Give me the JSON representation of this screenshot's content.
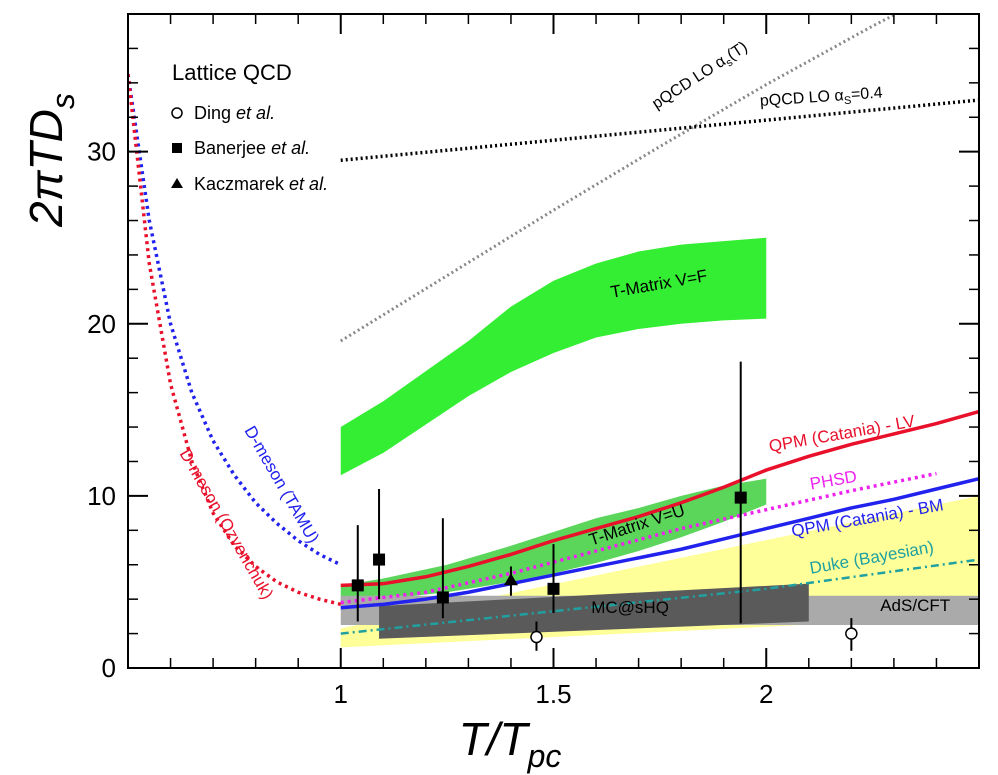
{
  "chart_data": {
    "type": "line",
    "xlabel": "T/T",
    "xlabel_sub": "pc",
    "ylabel": "2πTD",
    "ylabel_sub": "s",
    "xlim": [
      0.5,
      2.5
    ],
    "ylim": [
      0,
      38
    ],
    "x_ticks": [
      {
        "v": 1,
        "label": "1"
      },
      {
        "v": 1.5,
        "label": "1.5"
      },
      {
        "v": 2,
        "label": "2"
      }
    ],
    "y_ticks": [
      {
        "v": 0,
        "label": "0"
      },
      {
        "v": 10,
        "label": "10"
      },
      {
        "v": 20,
        "label": "20"
      },
      {
        "v": 30,
        "label": "30"
      }
    ],
    "legend": {
      "title": "Lattice QCD",
      "entries": [
        {
          "marker": "open-circle",
          "name": "Ding",
          "em": "et al."
        },
        {
          "marker": "square",
          "name": "Banerjee",
          "em": "et al."
        },
        {
          "marker": "triangle",
          "name": "Kaczmarek",
          "em": "et al."
        }
      ]
    },
    "bands": [
      {
        "name": "T-Matrix V=F",
        "color": "#33ee33",
        "x": [
          1.0,
          1.1,
          1.3,
          1.4,
          1.5,
          1.6,
          1.7,
          1.8,
          1.9,
          2.0
        ],
        "low": [
          11.2,
          12.5,
          15.8,
          17.2,
          18.3,
          19.2,
          19.7,
          20.0,
          20.2,
          20.3
        ],
        "high": [
          14.0,
          15.5,
          19.0,
          21.0,
          22.5,
          23.5,
          24.2,
          24.6,
          24.8,
          25.0
        ]
      },
      {
        "name": "T-Matrix V=U",
        "color": "#5bd65b",
        "x": [
          1.0,
          1.1,
          1.25,
          1.4,
          1.5,
          1.6,
          1.7,
          1.8,
          1.9,
          2.0
        ],
        "low": [
          3.8,
          4.0,
          4.4,
          5.0,
          5.5,
          6.1,
          6.8,
          7.6,
          8.5,
          9.5
        ],
        "high": [
          4.8,
          5.2,
          6.0,
          7.1,
          7.9,
          8.7,
          9.3,
          10.0,
          10.6,
          11.0
        ]
      },
      {
        "name": "Duke (Bayesian)",
        "color": "#ffff99",
        "x": [
          1.0,
          2.5
        ],
        "low": [
          1.2,
          3.0
        ],
        "high": [
          2.3,
          10.0
        ]
      },
      {
        "name": "AdS/CFT",
        "color": "#aaaaaa",
        "x": [
          1.0,
          2.5
        ],
        "low": [
          2.5,
          2.5
        ],
        "high": [
          4.2,
          4.2
        ]
      },
      {
        "name": "MC@sHQ",
        "color": "#5a5a5a",
        "x": [
          1.09,
          2.1
        ],
        "low": [
          1.7,
          2.7
        ],
        "high": [
          3.6,
          4.9
        ]
      }
    ],
    "band_labels": [
      {
        "name": "T-Matrix V=F",
        "x": 1.75,
        "y": 22.0,
        "color": "#000000",
        "angle": -10
      },
      {
        "name": "T-Matrix V=U",
        "x": 1.7,
        "y": 8.0,
        "color": "#000000",
        "angle": -18
      },
      {
        "name": "MC@sHQ",
        "x": 1.68,
        "y": 3.2,
        "color": "#000000",
        "angle": 0
      },
      {
        "name": "AdS/CFT",
        "x": 2.35,
        "y": 3.3,
        "color": "#000000",
        "angle": 0
      }
    ],
    "series": [
      {
        "name": "QPM (Catania) - LV",
        "color": "#e8102a",
        "style": "solid",
        "x": [
          1.0,
          1.1,
          1.2,
          1.3,
          1.4,
          1.5,
          1.6,
          1.7,
          1.8,
          1.9,
          2.0,
          2.1,
          2.2,
          2.3,
          2.4,
          2.5
        ],
        "y": [
          4.8,
          4.9,
          5.3,
          5.9,
          6.6,
          7.4,
          8.1,
          8.8,
          9.6,
          10.5,
          11.5,
          12.3,
          13.0,
          13.6,
          14.2,
          14.9
        ]
      },
      {
        "name": "QPM (Catania) - BM",
        "color": "#2222ee",
        "style": "solid",
        "x": [
          1.0,
          1.1,
          1.2,
          1.3,
          1.4,
          1.5,
          1.6,
          1.7,
          1.8,
          1.9,
          2.0,
          2.1,
          2.2,
          2.3,
          2.4,
          2.5
        ],
        "y": [
          3.5,
          3.7,
          4.0,
          4.4,
          4.9,
          5.4,
          5.9,
          6.4,
          6.9,
          7.5,
          8.1,
          8.7,
          9.3,
          9.8,
          10.4,
          11.0
        ]
      },
      {
        "name": "PHSD",
        "color": "#ee22ee",
        "style": "dotted",
        "x": [
          1.0,
          1.2,
          1.4,
          1.6,
          1.8,
          2.0,
          2.2,
          2.4
        ],
        "y": [
          3.8,
          4.4,
          5.5,
          6.8,
          8.1,
          9.2,
          10.3,
          11.3
        ]
      },
      {
        "name": "Duke (Bayesian)",
        "color": "#20a0a0",
        "style": "dashdot",
        "x": [
          1.0,
          1.5,
          2.0,
          2.5
        ],
        "y": [
          2.0,
          3.3,
          4.6,
          6.3
        ]
      },
      {
        "name": "D-meson (TAMU)",
        "color": "#2222ee",
        "style": "dotted",
        "x": [
          0.5,
          0.55,
          0.6,
          0.65,
          0.7,
          0.75,
          0.8,
          0.85,
          0.9,
          0.95,
          1.0
        ],
        "y": [
          34.5,
          26.0,
          20.0,
          16.0,
          13.2,
          11.2,
          9.6,
          8.4,
          7.4,
          6.6,
          6.0
        ]
      },
      {
        "name": "D-meson (Ozvenchuk)",
        "color": "#e8102a",
        "style": "dotted",
        "x": [
          0.5,
          0.55,
          0.6,
          0.65,
          0.7,
          0.75,
          0.8,
          0.85,
          0.9,
          0.95,
          1.0
        ],
        "y": [
          34.5,
          23.5,
          16.5,
          12.0,
          9.0,
          7.1,
          5.9,
          5.0,
          4.4,
          4.0,
          3.7
        ]
      },
      {
        "name": "pQCD LO α_s(T)",
        "color": "#888888",
        "style": "dotted",
        "x": [
          1.0,
          1.25,
          1.5,
          1.75,
          2.0,
          2.25,
          2.5
        ],
        "y": [
          19.0,
          22.8,
          26.6,
          30.3,
          33.9,
          37.3,
          40.5
        ]
      },
      {
        "name": "pQCD LO α_s=0.4",
        "color": "#000000",
        "style": "dotted",
        "x": [
          1.0,
          2.5
        ],
        "y": [
          29.5,
          33.0
        ]
      }
    ],
    "series_labels": [
      {
        "text": "QPM (Catania) - LV",
        "x": 2.18,
        "y": 13.3,
        "color": "#e8102a",
        "angle": -10
      },
      {
        "text": "PHSD",
        "x": 2.16,
        "y": 10.6,
        "color": "#ee22ee",
        "angle": -10
      },
      {
        "text": "QPM (Catania) - BM",
        "x": 2.24,
        "y": 8.4,
        "color": "#2222ee",
        "angle": -10
      },
      {
        "text": "Duke (Bayesian)",
        "x": 2.25,
        "y": 6.1,
        "color": "#20a0a0",
        "angle": -10
      },
      {
        "text": "D-meson (TAMU)",
        "x": 0.85,
        "y": 10.5,
        "color": "#2222ee",
        "angle": 60
      },
      {
        "text": "D-meson (Ozvenchuk)",
        "x": 0.72,
        "y": 8.2,
        "color": "#e8102a",
        "angle": 60
      }
    ],
    "pqcd_labels": [
      {
        "text": "pQCD LO α",
        "sub": "s",
        "tail": "(T)",
        "x": 1.85,
        "y": 34.2,
        "angle": -33
      },
      {
        "text": "pQCD LO α",
        "sub": "S",
        "tail": "=0.4",
        "x": 2.13,
        "y": 32.9,
        "angle": -4
      }
    ],
    "points": [
      {
        "set": "Banerjee",
        "marker": "square",
        "x": 1.04,
        "y": 4.8,
        "err_low": 2.7,
        "err_high": 8.3
      },
      {
        "set": "Banerjee",
        "marker": "square",
        "x": 1.09,
        "y": 6.3,
        "err_low": 4.0,
        "err_high": 10.4
      },
      {
        "set": "Banerjee",
        "marker": "square",
        "x": 1.24,
        "y": 4.1,
        "err_low": 2.9,
        "err_high": 8.7
      },
      {
        "set": "Banerjee",
        "marker": "square",
        "x": 1.5,
        "y": 4.6,
        "err_low": 3.2,
        "err_high": 7.2
      },
      {
        "set": "Banerjee",
        "marker": "square",
        "x": 1.94,
        "y": 9.9,
        "err_low": 2.6,
        "err_high": 17.8
      },
      {
        "set": "Kaczmarek",
        "marker": "triangle",
        "x": 1.4,
        "y": 5.1,
        "err_low": 4.2,
        "err_high": 5.9
      },
      {
        "set": "Ding",
        "marker": "open-circle",
        "x": 1.46,
        "y": 1.8,
        "err_low": 1.0,
        "err_high": 2.7
      },
      {
        "set": "Ding",
        "marker": "open-circle",
        "x": 2.2,
        "y": 2.0,
        "err_low": 1.0,
        "err_high": 2.9
      }
    ]
  }
}
